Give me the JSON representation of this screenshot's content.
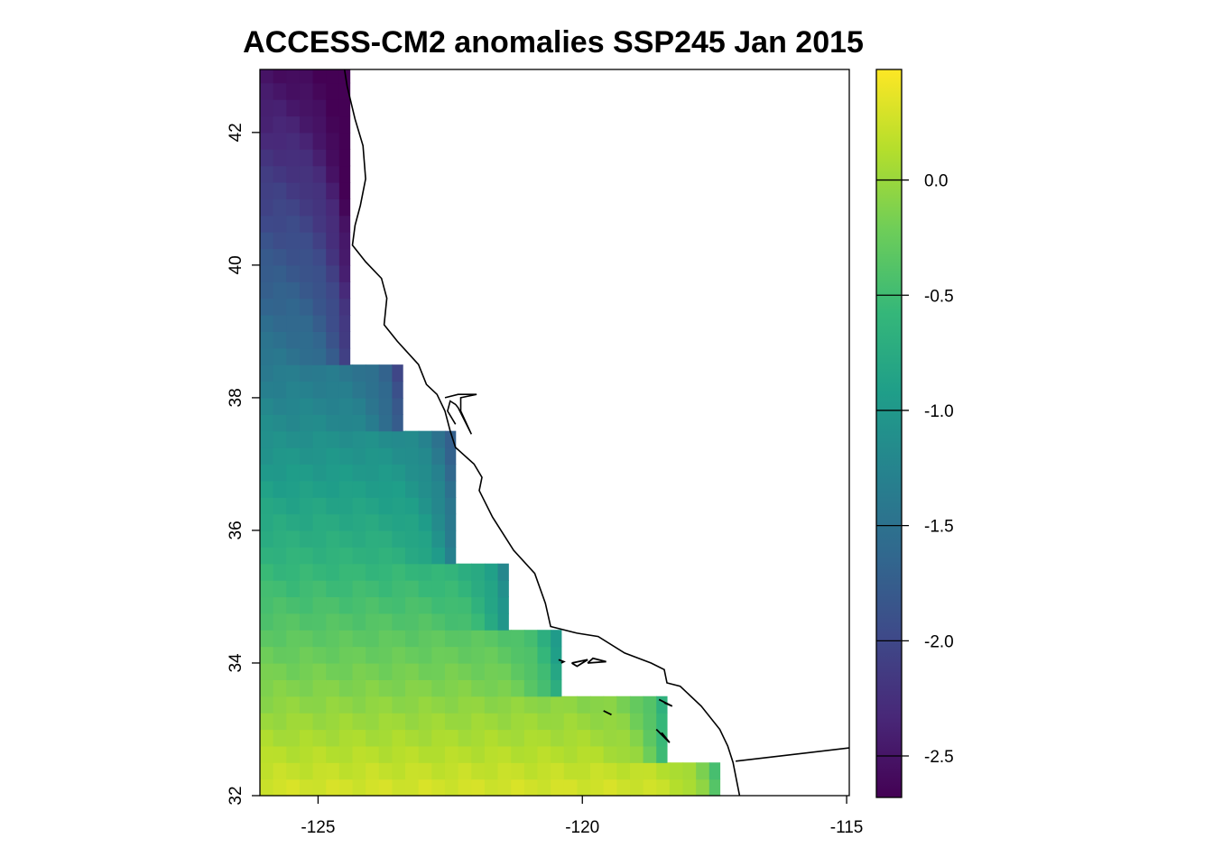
{
  "chart_data": {
    "type": "heatmap",
    "title": "ACCESS-CM2 anomalies SSP245 Jan 2015",
    "xlabel": "",
    "ylabel": "",
    "xlim": [
      -126.1,
      -114.95
    ],
    "ylim": [
      32,
      42.95
    ],
    "x_ticks": [
      -125,
      -120,
      -115
    ],
    "x_tick_labels": [
      "-125",
      "-120",
      "-115"
    ],
    "y_ticks": [
      32,
      34,
      36,
      38,
      40,
      42
    ],
    "y_tick_labels": [
      "32",
      "34",
      "36",
      "38",
      "40",
      "42"
    ],
    "colorbar": {
      "palette": "viridis",
      "range": [
        -2.68,
        0.48
      ],
      "ticks": [
        0.0,
        -0.5,
        -1.0,
        -1.5,
        -2.0,
        -2.5
      ],
      "tick_labels": [
        "0.0",
        "-0.5",
        "-1.0",
        "-1.5",
        "-2.0",
        "-2.5"
      ],
      "colors": [
        "#440154",
        "#482878",
        "#3e4a89",
        "#31688e",
        "#26828e",
        "#1f9e89",
        "#35b779",
        "#6dcd59",
        "#b4de2c",
        "#fde725"
      ]
    },
    "grid": {
      "cell_size_deg": 0.25,
      "x_start": -126.1,
      "y_start": 32,
      "ocean_mask_by_latitude": [
        {
          "lat_min": 38.5,
          "lat_max": 42.95,
          "lon_max": -124.4
        },
        {
          "lat_min": 37.5,
          "lat_max": 38.5,
          "lon_max": -123.4
        },
        {
          "lat_min": 35.5,
          "lat_max": 37.5,
          "lon_max": -122.4
        },
        {
          "lat_min": 34.5,
          "lat_max": 35.5,
          "lon_max": -121.4
        },
        {
          "lat_min": 33.5,
          "lat_max": 34.5,
          "lon_max": -120.4
        },
        {
          "lat_min": 32.5,
          "lat_max": 33.5,
          "lon_max": -118.4
        },
        {
          "lat_min": 32.0,
          "lat_max": 32.5,
          "lon_max": -117.4
        }
      ]
    },
    "anomaly_model": {
      "description": "approximate anomaly surface (deg C) estimated from the colour field",
      "base": 0.3,
      "lat_coef": -0.26,
      "lat_ref": 32,
      "coast_coef": 0.8,
      "coast_offset": 0.4
    },
    "coastline": [
      [
        -124.5,
        42.95
      ],
      [
        -124.45,
        42.7
      ],
      [
        -124.3,
        42.2
      ],
      [
        -124.15,
        41.8
      ],
      [
        -124.1,
        41.3
      ],
      [
        -124.2,
        40.9
      ],
      [
        -124.3,
        40.6
      ],
      [
        -124.35,
        40.3
      ],
      [
        -124.1,
        40.05
      ],
      [
        -123.8,
        39.8
      ],
      [
        -123.7,
        39.5
      ],
      [
        -123.75,
        39.1
      ],
      [
        -123.5,
        38.85
      ],
      [
        -123.1,
        38.5
      ],
      [
        -122.95,
        38.2
      ],
      [
        -122.75,
        38.05
      ],
      [
        -122.6,
        37.8
      ],
      [
        -122.5,
        37.5
      ],
      [
        -122.4,
        37.25
      ],
      [
        -122.05,
        37.0
      ],
      [
        -121.9,
        36.8
      ],
      [
        -121.95,
        36.6
      ],
      [
        -121.7,
        36.2
      ],
      [
        -121.3,
        35.7
      ],
      [
        -120.9,
        35.35
      ],
      [
        -120.7,
        34.9
      ],
      [
        -120.6,
        34.55
      ],
      [
        -120.1,
        34.45
      ],
      [
        -119.7,
        34.4
      ],
      [
        -119.2,
        34.15
      ],
      [
        -118.7,
        34.0
      ],
      [
        -118.45,
        33.9
      ],
      [
        -118.4,
        33.7
      ],
      [
        -118.15,
        33.65
      ],
      [
        -117.75,
        33.35
      ],
      [
        -117.4,
        33.0
      ],
      [
        -117.25,
        32.75
      ],
      [
        -117.15,
        32.5
      ],
      [
        -117.05,
        32.1
      ],
      [
        -117.0,
        31.9
      ]
    ],
    "bay_polyline": [
      [
        -122.6,
        38.0
      ],
      [
        -122.35,
        38.05
      ],
      [
        -122.0,
        38.05
      ],
      [
        -122.3,
        38.0
      ],
      [
        -122.3,
        37.8
      ],
      [
        -122.1,
        37.45
      ],
      [
        -122.35,
        37.85
      ],
      [
        -122.4,
        37.9
      ],
      [
        -122.5,
        37.95
      ],
      [
        -122.55,
        37.8
      ],
      [
        -122.4,
        37.6
      ]
    ],
    "border": [
      [
        -117.1,
        32.52
      ],
      [
        -114.95,
        32.72
      ]
    ],
    "islands": [
      [
        [
          -120.45,
          34.05
        ],
        [
          -120.35,
          34.02
        ],
        [
          -120.4,
          34.0
        ]
      ],
      [
        [
          -120.2,
          34.0
        ],
        [
          -119.9,
          34.05
        ],
        [
          -120.1,
          33.95
        ],
        [
          -120.2,
          34.0
        ]
      ],
      [
        [
          -119.9,
          34.0
        ],
        [
          -119.55,
          34.02
        ],
        [
          -119.8,
          34.07
        ],
        [
          -119.9,
          34.0
        ]
      ],
      [
        [
          -119.6,
          33.28
        ],
        [
          -119.45,
          33.22
        ]
      ],
      [
        [
          -118.55,
          33.45
        ],
        [
          -118.3,
          33.35
        ],
        [
          -118.45,
          33.4
        ]
      ],
      [
        [
          -118.6,
          33.0
        ],
        [
          -118.35,
          32.8
        ],
        [
          -118.5,
          32.95
        ]
      ]
    ]
  }
}
